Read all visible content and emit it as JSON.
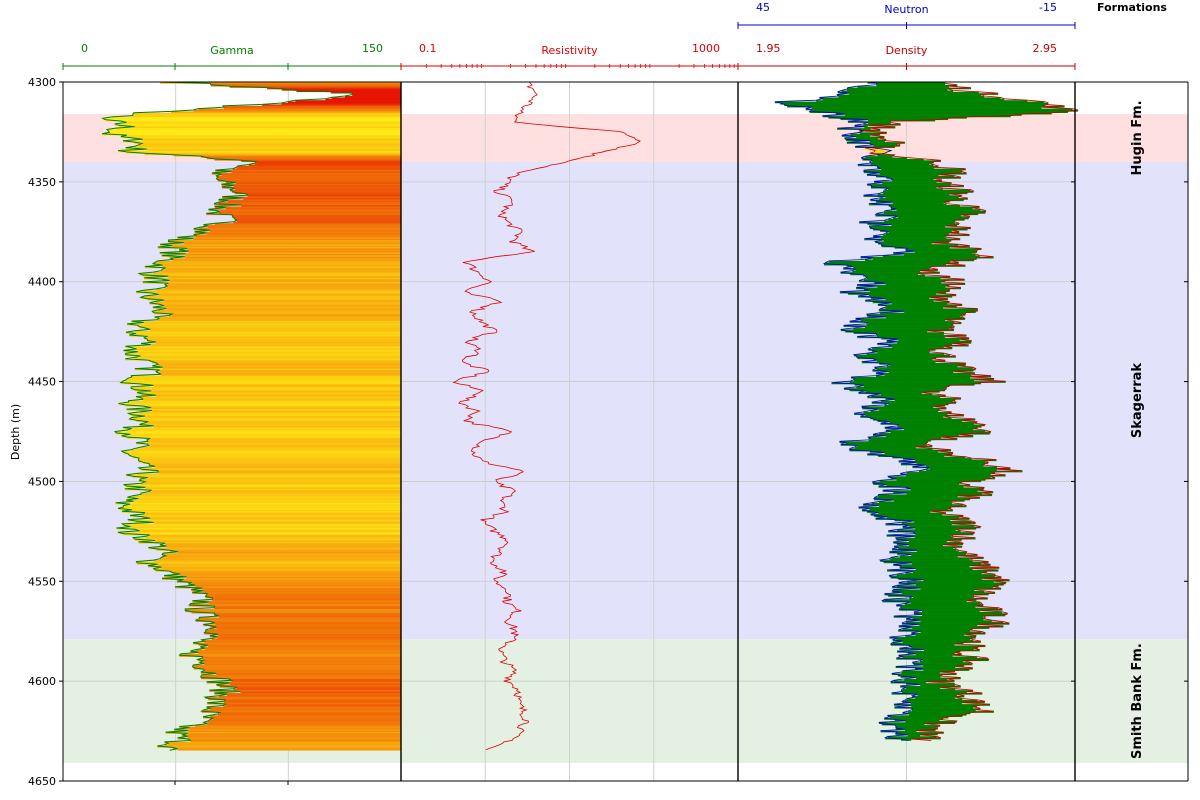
{
  "chart_data": {
    "type": "line",
    "ylabel": "Depth (m)",
    "ylim": [
      4300,
      4650
    ],
    "y_inverted": true,
    "y_ticks": [
      "4300",
      "4350",
      "4400",
      "4450",
      "4500",
      "4550",
      "4600",
      "4650"
    ],
    "grid": true,
    "tracks": [
      {
        "name": "Gamma",
        "range": [
          0,
          150
        ],
        "range_labels": [
          "0",
          "150"
        ],
        "color": "#008000",
        "fill": "gradient yellow-to-red by value",
        "depth": [
          4300,
          4306,
          4310,
          4315,
          4318,
          4322,
          4326,
          4330,
          4335,
          4340,
          4343,
          4346,
          4350,
          4355,
          4360,
          4365,
          4370,
          4375,
          4380,
          4385,
          4390,
          4395,
          4400,
          4405,
          4410,
          4415,
          4420,
          4425,
          4430,
          4435,
          4440,
          4445,
          4450,
          4455,
          4460,
          4465,
          4470,
          4475,
          4480,
          4485,
          4490,
          4495,
          4500,
          4505,
          4510,
          4515,
          4520,
          4525,
          4530,
          4535,
          4540,
          4545,
          4550,
          4555,
          4560,
          4565,
          4570,
          4575,
          4580,
          4585,
          4590,
          4595,
          4600,
          4605,
          4610,
          4615,
          4620,
          4625,
          4630,
          4635
        ],
        "values": [
          50,
          130,
          100,
          40,
          15,
          28,
          20,
          35,
          30,
          90,
          75,
          65,
          70,
          78,
          74,
          68,
          72,
          62,
          48,
          50,
          45,
          40,
          42,
          36,
          40,
          44,
          34,
          32,
          38,
          30,
          35,
          40,
          32,
          37,
          30,
          34,
          36,
          30,
          34,
          28,
          32,
          36,
          30,
          34,
          26,
          30,
          35,
          28,
          40,
          45,
          38,
          46,
          52,
          58,
          62,
          60,
          66,
          70,
          60,
          55,
          62,
          65,
          70,
          72,
          68,
          65,
          60,
          50,
          52,
          45
        ]
      },
      {
        "name": "Resistivity",
        "range_labels": [
          "0.1",
          "1000"
        ],
        "scale": "log",
        "range": [
          0.1,
          1000
        ],
        "color": "#e00000",
        "depth": [
          4300,
          4305,
          4310,
          4315,
          4320,
          4325,
          4330,
          4335,
          4340,
          4345,
          4350,
          4355,
          4360,
          4365,
          4370,
          4375,
          4380,
          4385,
          4390,
          4395,
          4400,
          4405,
          4410,
          4415,
          4420,
          4425,
          4430,
          4435,
          4440,
          4445,
          4450,
          4455,
          4460,
          4465,
          4470,
          4475,
          4480,
          4485,
          4490,
          4495,
          4500,
          4505,
          4510,
          4515,
          4520,
          4525,
          4530,
          4535,
          4540,
          4545,
          4550,
          4555,
          4560,
          4565,
          4570,
          4575,
          4580,
          4585,
          4590,
          4595,
          4600,
          4605,
          4610,
          4615,
          4620,
          4625,
          4630,
          4635
        ],
        "values": [
          3,
          4,
          3.5,
          2.5,
          2.2,
          40,
          80,
          25,
          10,
          2.5,
          1.8,
          1.4,
          2.2,
          1.5,
          1.8,
          2.6,
          2.2,
          3.5,
          0.6,
          0.8,
          1.2,
          0.5,
          1.6,
          0.7,
          0.9,
          1.3,
          0.6,
          0.9,
          0.5,
          1.1,
          0.4,
          1.0,
          0.5,
          0.8,
          0.6,
          2.0,
          1.0,
          0.7,
          0.9,
          3.0,
          1.2,
          2.2,
          1.5,
          1.8,
          0.9,
          1.3,
          2.0,
          1.5,
          1.2,
          1.7,
          1.3,
          2.0,
          1.8,
          2.4,
          1.9,
          2.3,
          2.0,
          1.5,
          1.7,
          2.2,
          1.9,
          2.6,
          2.4,
          2.8,
          3.2,
          2.5,
          2.0,
          0.9
        ]
      },
      {
        "name": "Density",
        "range": [
          1.95,
          2.95
        ],
        "range_labels": [
          "1.95",
          "2.95"
        ],
        "color": "#c00000",
        "depth": [
          4300,
          4305,
          4310,
          4315,
          4320,
          4325,
          4330,
          4335,
          4340,
          4345,
          4350,
          4355,
          4360,
          4365,
          4370,
          4375,
          4380,
          4385,
          4390,
          4395,
          4400,
          4405,
          4410,
          4415,
          4420,
          4425,
          4430,
          4435,
          4440,
          4445,
          4450,
          4455,
          4460,
          4465,
          4470,
          4475,
          4480,
          4485,
          4490,
          4495,
          4500,
          4505,
          4510,
          4515,
          4520,
          4525,
          4530,
          4535,
          4540,
          4545,
          4550,
          4555,
          4560,
          4565,
          4570,
          4575,
          4580,
          4585,
          4590,
          4595,
          4600,
          4605,
          4610,
          4615,
          4620,
          4625,
          4630
        ],
        "values": [
          2.55,
          2.65,
          2.85,
          2.94,
          2.4,
          2.35,
          2.4,
          2.35,
          2.55,
          2.6,
          2.55,
          2.62,
          2.6,
          2.65,
          2.58,
          2.62,
          2.55,
          2.7,
          2.62,
          2.5,
          2.6,
          2.55,
          2.58,
          2.63,
          2.57,
          2.55,
          2.65,
          2.55,
          2.58,
          2.62,
          2.7,
          2.5,
          2.6,
          2.55,
          2.65,
          2.7,
          2.5,
          2.55,
          2.7,
          2.75,
          2.62,
          2.68,
          2.6,
          2.55,
          2.62,
          2.65,
          2.6,
          2.62,
          2.65,
          2.7,
          2.72,
          2.68,
          2.65,
          2.7,
          2.72,
          2.68,
          2.65,
          2.62,
          2.65,
          2.6,
          2.55,
          2.63,
          2.65,
          2.68,
          2.55,
          2.52,
          2.5
        ]
      },
      {
        "name": "Neutron",
        "range": [
          45,
          -15
        ],
        "range_labels": [
          "45",
          "-15"
        ],
        "color": "#0000cc",
        "depth": [
          4300,
          4305,
          4310,
          4315,
          4320,
          4325,
          4330,
          4335,
          4340,
          4345,
          4350,
          4355,
          4360,
          4365,
          4370,
          4375,
          4380,
          4385,
          4390,
          4395,
          4400,
          4405,
          4410,
          4415,
          4420,
          4425,
          4430,
          4435,
          4440,
          4445,
          4450,
          4455,
          4460,
          4465,
          4470,
          4475,
          4480,
          4485,
          4490,
          4495,
          4500,
          4505,
          4510,
          4515,
          4520,
          4525,
          4530,
          4535,
          4540,
          4545,
          4550,
          4555,
          4560,
          4565,
          4570,
          4575,
          4580,
          4585,
          4590,
          4595,
          4600,
          4605,
          4610,
          4615,
          4620,
          4625,
          4630
        ],
        "values": [
          20,
          25,
          36,
          30,
          22,
          26,
          24,
          20,
          23,
          22,
          19,
          21,
          20,
          18,
          21,
          17,
          22,
          15,
          27,
          26,
          21,
          25,
          19,
          18,
          23,
          24,
          18,
          23,
          21,
          19,
          26,
          22,
          18,
          23,
          19,
          17,
          25,
          22,
          14,
          13,
          19,
          16,
          20,
          22,
          16,
          16,
          17,
          15,
          17,
          16,
          14,
          16,
          17,
          14,
          15,
          15,
          16,
          14,
          15,
          15,
          15,
          16,
          16,
          15,
          18,
          17,
          16
        ]
      }
    ],
    "formations": [
      {
        "name": "Hugin Fm.",
        "top": 4316,
        "base": 4340,
        "color": "#ffe0e0"
      },
      {
        "name": "Skagerrak",
        "top": 4340,
        "base": 4579,
        "color": "#e2e2fa"
      },
      {
        "name": "Smith Bank Fm.",
        "top": 4579,
        "base": 4641,
        "color": "#e4f0e2"
      }
    ],
    "formations_title": "Formations"
  }
}
